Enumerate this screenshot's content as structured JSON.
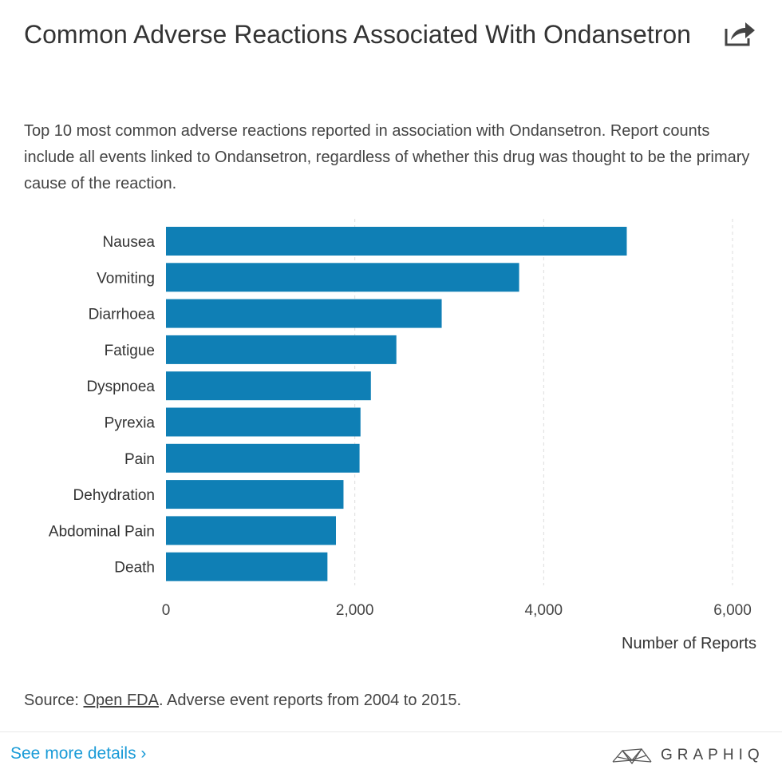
{
  "header": {
    "title": "Common Adverse Reactions Associated With Ondansetron",
    "subtitle": "Top 10 most common adverse reactions reported in association with Ondansetron. Report counts include all events linked to Ondansetron, regardless of whether this drug was thought to be the primary cause of the reaction.",
    "share_icon": "share-icon"
  },
  "chart_data": {
    "type": "bar",
    "orientation": "horizontal",
    "categories": [
      "Nausea",
      "Vomiting",
      "Diarrhoea",
      "Fatigue",
      "Dyspnoea",
      "Pyrexia",
      "Pain",
      "Dehydration",
      "Abdominal Pain",
      "Death"
    ],
    "values": [
      4880,
      3740,
      2920,
      2440,
      2170,
      2060,
      2050,
      1880,
      1800,
      1710
    ],
    "xlim": [
      0,
      6000
    ],
    "x_ticks": [
      0,
      2000,
      4000,
      6000
    ],
    "x_tick_labels": [
      "0",
      "2,000",
      "4,000",
      "6,000"
    ],
    "xlabel": "Number of Reports",
    "ylabel": "",
    "grid": "vertical-dashed",
    "bar_color": "#0f7fb5"
  },
  "footer": {
    "source_prefix": "Source: ",
    "source_link": "Open FDA",
    "source_suffix": ". Adverse event reports from 2004 to 2015.",
    "see_more": "See more details ›",
    "brand": "GRAPHIQ",
    "brand_icon": "graphiq-logo-icon",
    "link_color": "#1a9bd7"
  }
}
